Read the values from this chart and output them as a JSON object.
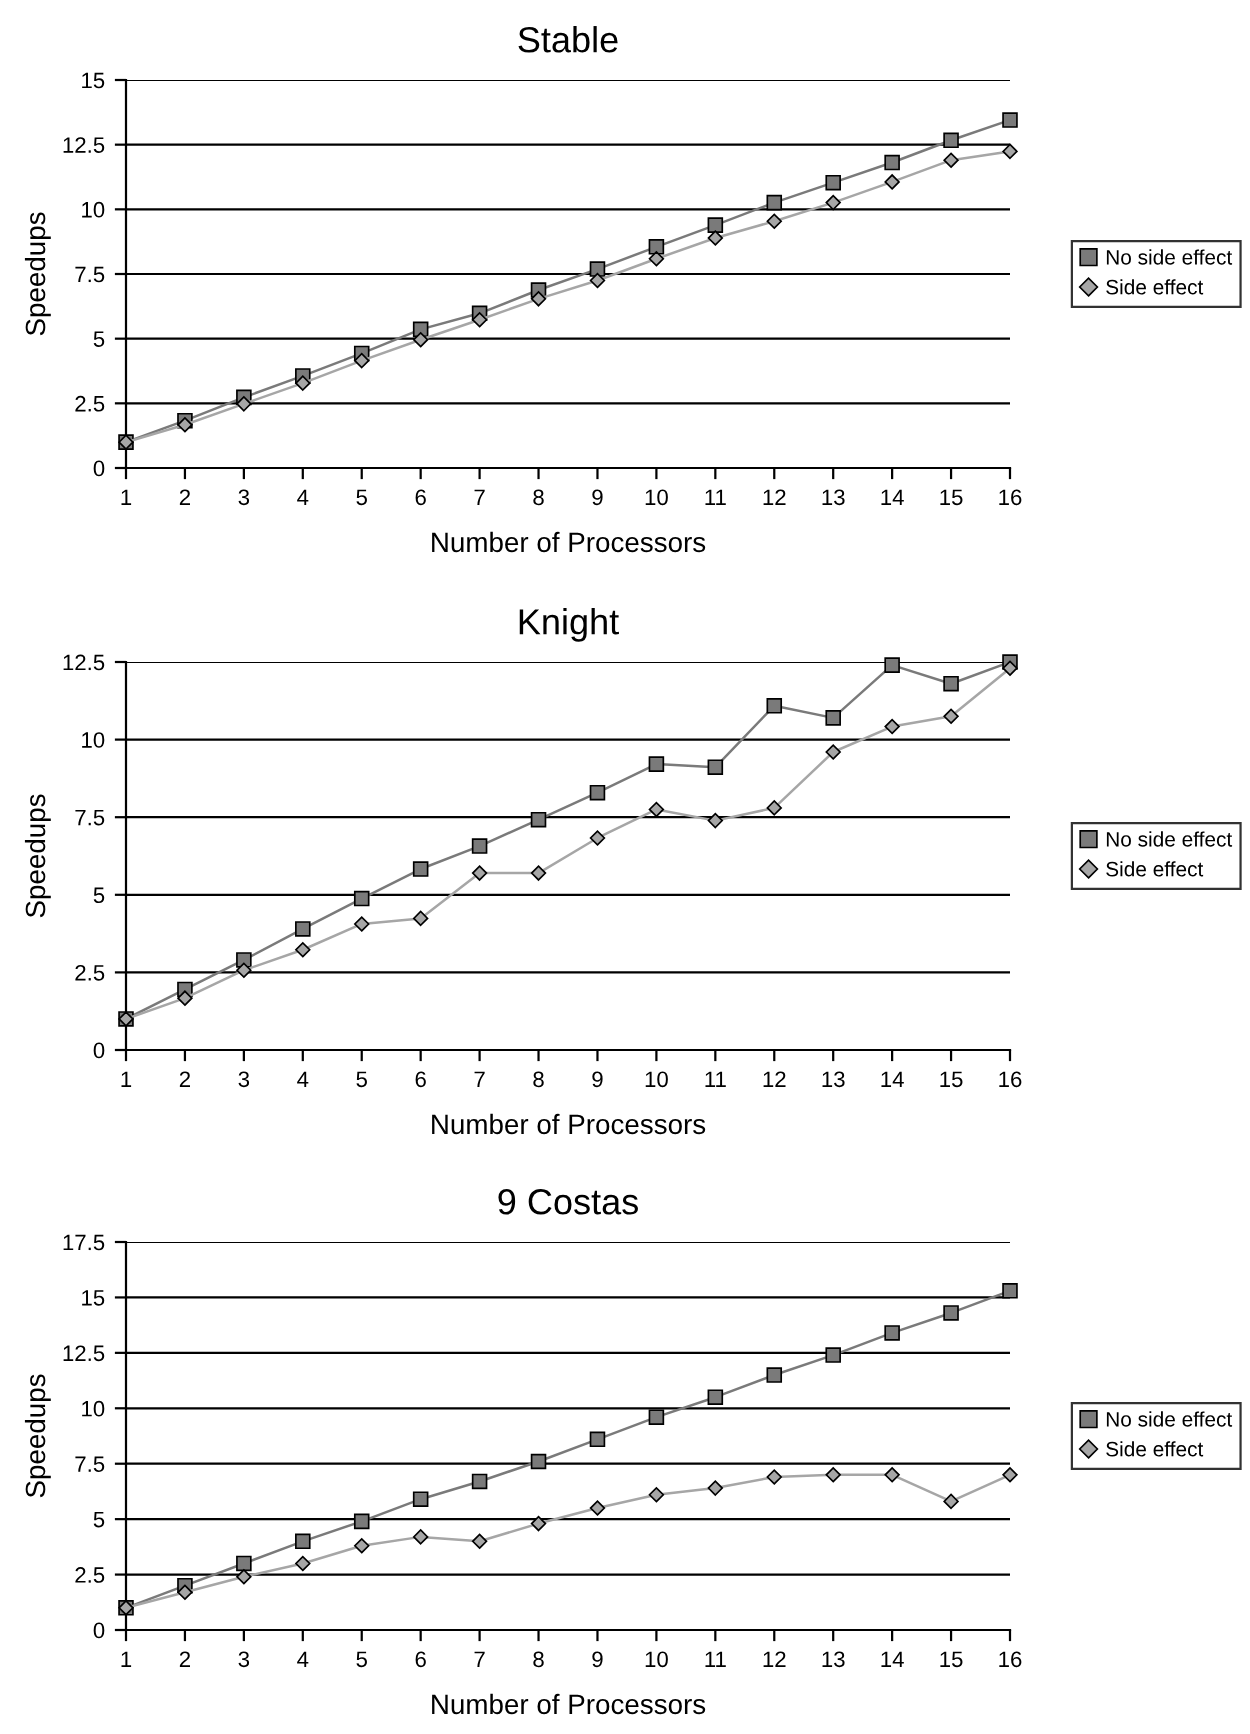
{
  "chart_data": [
    {
      "type": "line",
      "title": "Stable",
      "xlabel": "Number of Processors",
      "ylabel": "Speedups",
      "x": [
        1,
        2,
        3,
        4,
        5,
        6,
        7,
        8,
        9,
        10,
        11,
        12,
        13,
        14,
        15,
        16
      ],
      "xlim": [
        1,
        16
      ],
      "xticks": [
        1,
        2,
        3,
        4,
        5,
        6,
        7,
        8,
        9,
        10,
        11,
        12,
        13,
        14,
        15,
        16
      ],
      "ylim": [
        0,
        15
      ],
      "yticks": [
        0,
        2.5,
        5,
        7.5,
        10,
        12.5,
        15
      ],
      "grid": "y",
      "legend": "right",
      "series": [
        {
          "name": "No side effect",
          "color": "#7a7a7a",
          "marker": "square",
          "values": [
            1,
            1.83,
            2.73,
            3.56,
            4.43,
            5.36,
            5.98,
            6.88,
            7.69,
            8.55,
            9.39,
            10.26,
            11.03,
            11.81,
            12.67,
            13.45
          ]
        },
        {
          "name": "Side effect",
          "color": "#a6a6a6",
          "marker": "diamond",
          "values": [
            1,
            1.67,
            2.48,
            3.28,
            4.15,
            4.96,
            5.73,
            6.54,
            7.25,
            8.09,
            8.89,
            9.54,
            10.26,
            11.06,
            11.9,
            12.24
          ]
        }
      ]
    },
    {
      "type": "line",
      "title": "Knight",
      "xlabel": "Number of Processors",
      "ylabel": "Speedups",
      "x": [
        1,
        2,
        3,
        4,
        5,
        6,
        7,
        8,
        9,
        10,
        11,
        12,
        13,
        14,
        15,
        16
      ],
      "xlim": [
        1,
        16
      ],
      "xticks": [
        1,
        2,
        3,
        4,
        5,
        6,
        7,
        8,
        9,
        10,
        11,
        12,
        13,
        14,
        15,
        16
      ],
      "ylim": [
        0,
        12.5
      ],
      "yticks": [
        0,
        2.5,
        5,
        7.5,
        10,
        12.5
      ],
      "grid": "y",
      "legend": "right",
      "series": [
        {
          "name": "No side effect",
          "color": "#7a7a7a",
          "marker": "square",
          "values": [
            1,
            1.95,
            2.9,
            3.9,
            4.88,
            5.83,
            6.57,
            7.42,
            8.29,
            9.21,
            9.11,
            11.09,
            10.7,
            12.4,
            11.8,
            12.5
          ]
        },
        {
          "name": "Side effect",
          "color": "#a6a6a6",
          "marker": "diamond",
          "values": [
            1,
            1.67,
            2.57,
            3.23,
            4.06,
            4.24,
            5.7,
            5.7,
            6.83,
            7.75,
            7.39,
            7.8,
            9.6,
            10.42,
            10.75,
            12.3
          ]
        }
      ]
    },
    {
      "type": "line",
      "title": "9 Costas",
      "xlabel": "Number of Processors",
      "ylabel": "Speedups",
      "x": [
        1,
        2,
        3,
        4,
        5,
        6,
        7,
        8,
        9,
        10,
        11,
        12,
        13,
        14,
        15,
        16
      ],
      "xlim": [
        1,
        16
      ],
      "xticks": [
        1,
        2,
        3,
        4,
        5,
        6,
        7,
        8,
        9,
        10,
        11,
        12,
        13,
        14,
        15,
        16
      ],
      "ylim": [
        0,
        17.5
      ],
      "yticks": [
        0,
        2.5,
        5,
        7.5,
        10,
        12.5,
        15,
        17.5
      ],
      "grid": "y",
      "legend": "right",
      "series": [
        {
          "name": "No side effect",
          "color": "#7a7a7a",
          "marker": "square",
          "values": [
            1,
            2,
            3,
            4,
            4.9,
            5.9,
            6.7,
            7.6,
            8.6,
            9.6,
            10.5,
            11.5,
            12.4,
            13.4,
            14.3,
            15.3
          ]
        },
        {
          "name": "Side effect",
          "color": "#a6a6a6",
          "marker": "diamond",
          "values": [
            1,
            1.7,
            2.4,
            3,
            3.8,
            4.2,
            4,
            4.8,
            5.5,
            6.1,
            6.4,
            6.9,
            7,
            7,
            5.8,
            7
          ]
        }
      ]
    }
  ]
}
